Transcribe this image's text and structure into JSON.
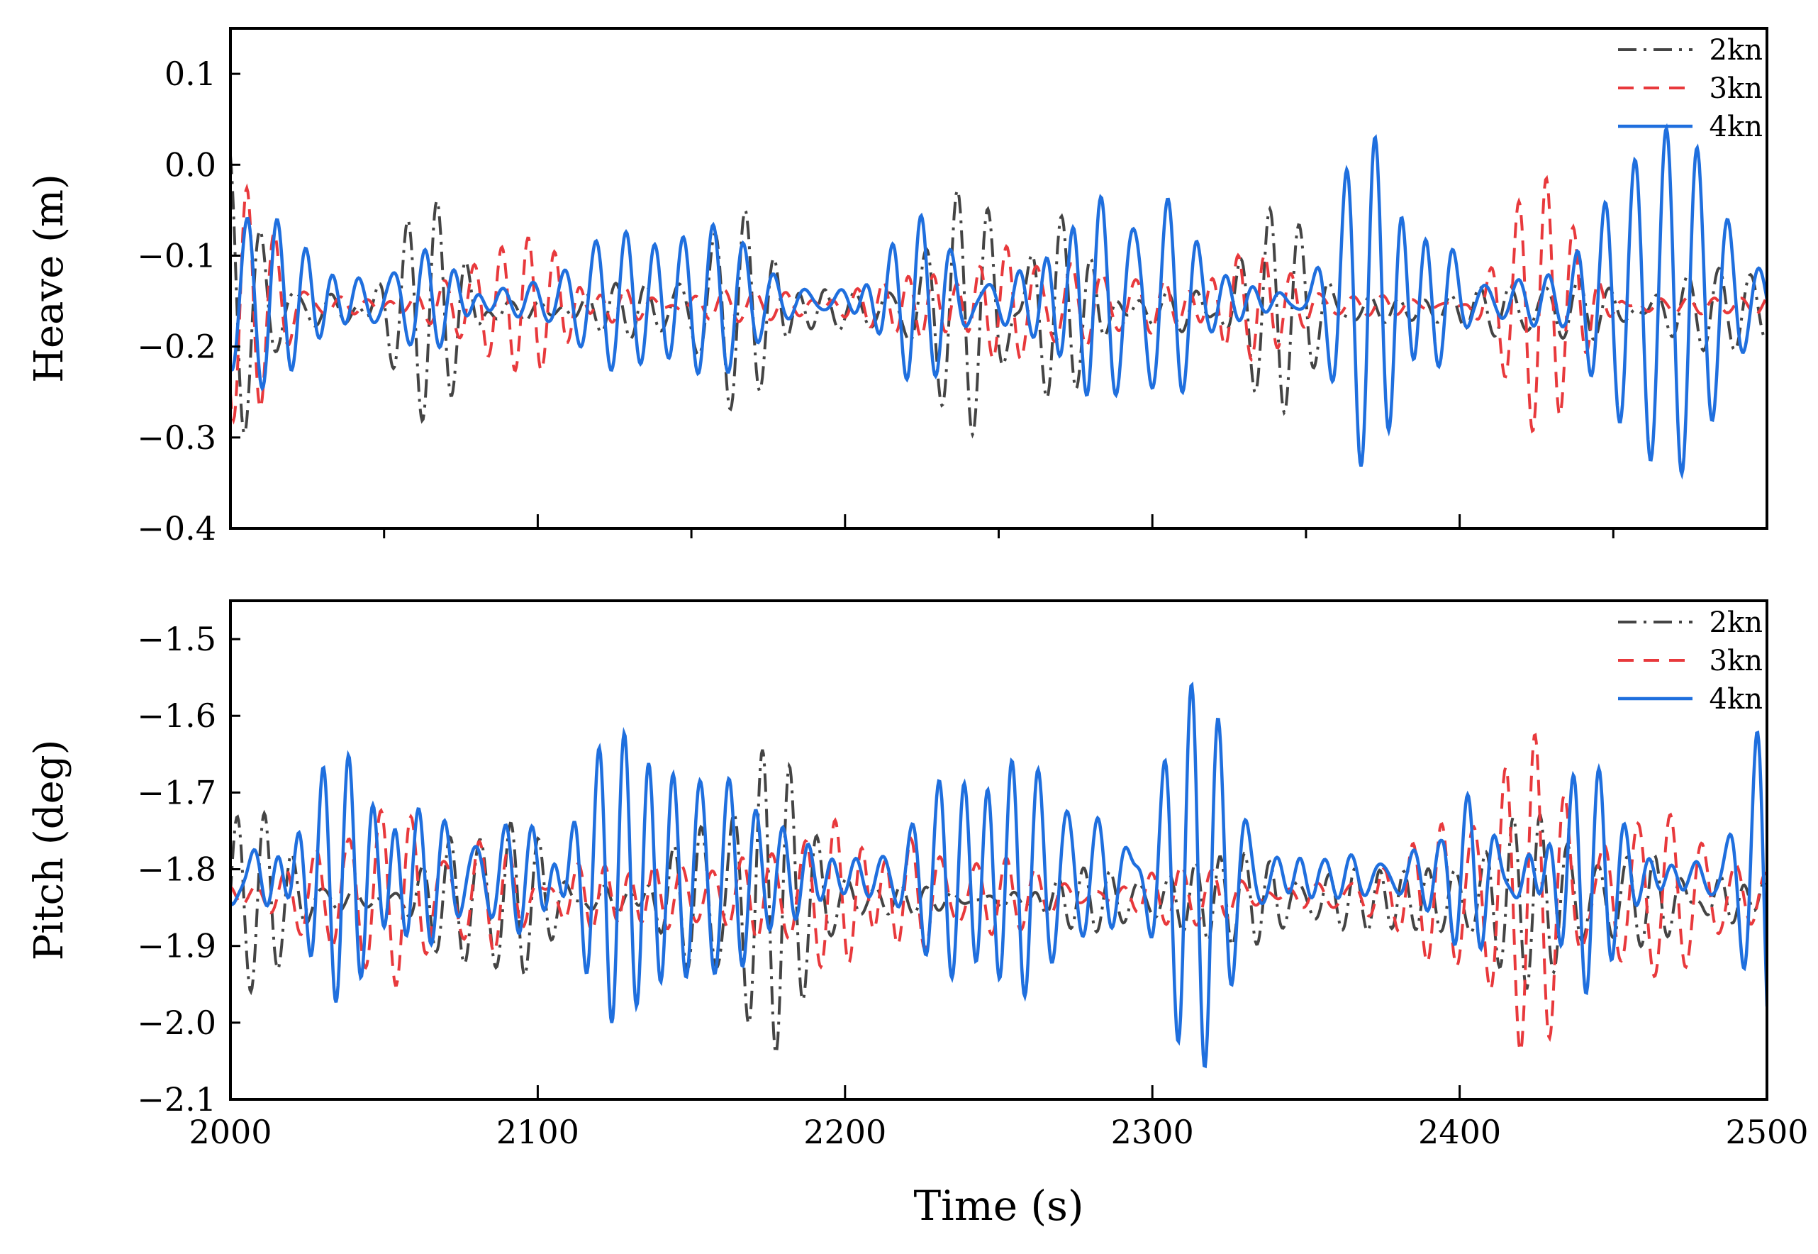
{
  "chart_data": [
    {
      "type": "line",
      "panel": "top",
      "title": "",
      "xlabel": "",
      "ylabel": "Heave (m)",
      "xlim": [
        2000,
        2500
      ],
      "ylim": [
        -0.4,
        0.15
      ],
      "xticks": [
        2100,
        2200,
        2300,
        2400
      ],
      "xticks_minor": [
        2050,
        2150,
        2250,
        2350,
        2450
      ],
      "yticks": [
        0.1,
        0.0,
        -0.1,
        -0.2,
        -0.3,
        -0.4
      ],
      "ytick_labels": [
        "0.1",
        "0.0",
        "−0.1",
        "−0.2",
        "−0.3",
        "−0.4"
      ],
      "legend_position": "top-right",
      "series": [
        {
          "name": "2kn",
          "color": "#444444",
          "style": "dashdot",
          "mean": -0.16,
          "values": []
        },
        {
          "name": "3kn",
          "color": "#e8393c",
          "style": "dashed",
          "mean": -0.155,
          "values": []
        },
        {
          "name": "4kn",
          "color": "#1f6fde",
          "style": "solid",
          "mean": -0.15,
          "values": []
        }
      ]
    },
    {
      "type": "line",
      "panel": "bottom",
      "title": "",
      "xlabel": "Time (s)",
      "ylabel": "Pitch (deg)",
      "xlim": [
        2000,
        2500
      ],
      "ylim": [
        -2.1,
        -1.45
      ],
      "xticks": [
        2000,
        2100,
        2200,
        2300,
        2400,
        2500
      ],
      "xtick_labels": [
        "2000",
        "2100",
        "2200",
        "2300",
        "2400",
        "2500"
      ],
      "yticks": [
        -1.5,
        -1.6,
        -1.7,
        -1.8,
        -1.9,
        -2.0,
        -2.1
      ],
      "ytick_labels": [
        "−1.5",
        "−1.6",
        "−1.7",
        "−1.8",
        "−1.9",
        "−2.0",
        "−2.1"
      ],
      "legend_position": "top-right",
      "series": [
        {
          "name": "2kn",
          "color": "#444444",
          "style": "dashdot",
          "mean": -1.84,
          "values": []
        },
        {
          "name": "3kn",
          "color": "#e8393c",
          "style": "dashed",
          "mean": -1.835,
          "values": []
        },
        {
          "name": "4kn",
          "color": "#1f6fde",
          "style": "solid",
          "mean": -1.81,
          "values": []
        }
      ]
    }
  ]
}
